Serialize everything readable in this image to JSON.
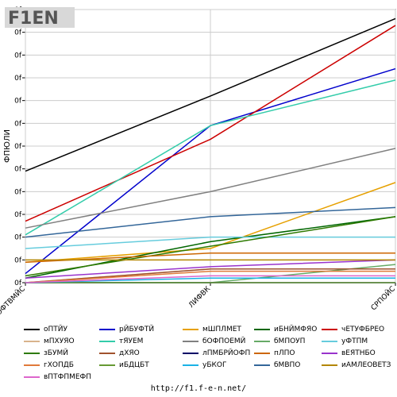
{
  "chart_data": {
    "type": "line",
    "xlabel": "",
    "ylabel": "ФПЮЛИ",
    "x": [
      "ЮФТВМЙС",
      "ЛИФВК",
      "СРПОЙС"
    ],
    "ylim": [
      0,
      12
    ],
    "y_tick_labels": [
      "0f",
      "0f",
      "0f",
      "0f",
      "0f",
      "0f",
      "0f",
      "0f",
      "0f",
      "0f",
      "0f",
      "0f",
      "0f"
    ],
    "grid": true,
    "legend": "bottom",
    "series": [
      {
        "name": "оПТЙУ",
        "color": "#000000",
        "values": [
          4.9,
          8.2,
          11.6
        ]
      },
      {
        "name": "рЙБУФТЙ",
        "color": "#0000cc",
        "values": [
          0.4,
          6.9,
          9.4
        ]
      },
      {
        "name": "мШПЛМЕТ",
        "color": "#e6a000",
        "values": [
          0.9,
          1.5,
          4.4
        ]
      },
      {
        "name": "иБНЙМФЯО",
        "color": "#006600",
        "values": [
          0.2,
          1.8,
          2.9
        ]
      },
      {
        "name": "чЕТУФБРЕО",
        "color": "#cc0000",
        "values": [
          2.7,
          6.3,
          11.3
        ]
      },
      {
        "name": "мПХУЯО",
        "color": "#d9b38c",
        "values": [
          0.0,
          0.6,
          0.6
        ]
      },
      {
        "name": "тЯУЕМ",
        "color": "#33ccaa",
        "values": [
          2.1,
          6.9,
          8.9
        ]
      },
      {
        "name": "бОФПОЕМЙ",
        "color": "#808080",
        "values": [
          2.4,
          4.0,
          5.9
        ]
      },
      {
        "name": "бМПОУП",
        "color": "#66aa66",
        "values": [
          0.0,
          0.0,
          0.8
        ]
      },
      {
        "name": "уФТПМ",
        "color": "#66ccdd",
        "values": [
          1.5,
          2.0,
          2.0
        ]
      },
      {
        "name": "зБУМЙ",
        "color": "#2d7a00",
        "values": [
          0.3,
          1.6,
          2.9
        ]
      },
      {
        "name": "дХЯО",
        "color": "#a0522d",
        "values": [
          0.0,
          0.6,
          0.6
        ]
      },
      {
        "name": "лПМБРЙОФП",
        "color": "#000066",
        "values": [
          0.0,
          0.0,
          0.0
        ]
      },
      {
        "name": "пЛПО",
        "color": "#cc6600",
        "values": [
          0.9,
          1.3,
          1.3
        ]
      },
      {
        "name": "вЕЯТНБО",
        "color": "#9933cc",
        "values": [
          0.2,
          0.7,
          1.0
        ]
      },
      {
        "name": "гХОПДБ",
        "color": "#e07a3a",
        "values": [
          0.0,
          0.5,
          0.5
        ]
      },
      {
        "name": "иБДЦБТ",
        "color": "#669933",
        "values": [
          0.0,
          0.0,
          0.0
        ]
      },
      {
        "name": "уБКОГ",
        "color": "#1ab2e6",
        "values": [
          0.0,
          0.2,
          0.2
        ]
      },
      {
        "name": "бМВПО",
        "color": "#336699",
        "values": [
          2.0,
          2.9,
          3.3
        ]
      },
      {
        "name": "иАМЛЕОВЕТЗ",
        "color": "#b38600",
        "values": [
          1.0,
          1.0,
          1.0
        ]
      },
      {
        "name": "вПТФПМЕФП",
        "color": "#dd66cc",
        "values": [
          0.0,
          0.3,
          0.3
        ]
      }
    ]
  },
  "footer": {
    "url": "http://f1.f-e-n.net/"
  },
  "logo": {
    "text": "F1EN"
  }
}
